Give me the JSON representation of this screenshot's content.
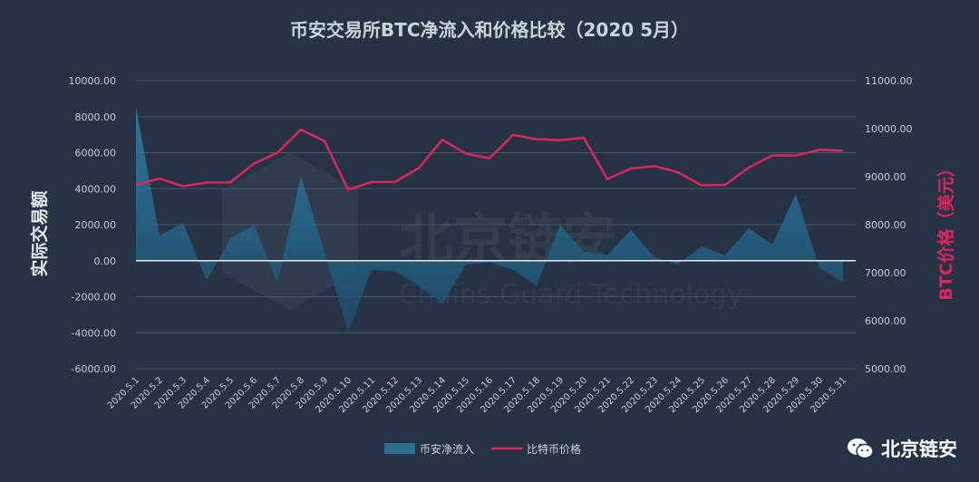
{
  "colors": {
    "background": "#253345",
    "net_inflow": "#2b6e92",
    "btc_price": "#e0245e",
    "grid": "#4a5666"
  },
  "watermark": {
    "text": "北京链安",
    "sub": "Chains Guard Technology"
  },
  "brand": {
    "name": "北京链安",
    "icon": "wechat-icon"
  },
  "chart_data": {
    "type": "area+line",
    "title": "币安交易所BTC净流入和价格比较（2020 5月）",
    "ylabel_left": "实际交易额",
    "ylabel_right": "BTC价格（美元）",
    "categories": [
      "2020.5.1",
      "2020.5.2",
      "2020.5.3",
      "2020.5.4",
      "2020.5.5",
      "2020.5.6",
      "2020.5.7",
      "2020.5.8",
      "2020.5.9",
      "2020.5.10",
      "2020.5.11",
      "2020.5.12",
      "2020.5.13",
      "2020.5.14",
      "2020.5.15",
      "2020.5.16",
      "2020.5.17",
      "2020.5.18",
      "2020.5.19",
      "2020.5.20",
      "2020.5.21",
      "2020.5.22",
      "2020.5.23",
      "2020.5.24",
      "2020.5.25",
      "2020.5.26",
      "2020.5.27",
      "2020.5.28",
      "2020.5.29",
      "2020.5.30",
      "2020.5.31"
    ],
    "ylim_left": [
      -6000,
      10000
    ],
    "yticks_left": [
      "10000.00",
      "8000.00",
      "6000.00",
      "4000.00",
      "2000.00",
      "0.00",
      "-2000.00",
      "-4000.00",
      "-6000.00"
    ],
    "ylim_right": [
      5000,
      11000
    ],
    "yticks_right": [
      "11000.00",
      "10000.00",
      "9000.00",
      "8000.00",
      "7000.00",
      "6000.00",
      "5000.00"
    ],
    "series": [
      {
        "name": "币安净流入",
        "axis": "left",
        "style": "area",
        "values": [
          8500,
          1400,
          2100,
          -1100,
          1200,
          2000,
          -1200,
          4700,
          500,
          -4000,
          -500,
          -600,
          -1400,
          -2400,
          -200,
          -100,
          -500,
          -1400,
          2000,
          500,
          300,
          1700,
          200,
          -200,
          800,
          300,
          1800,
          900,
          3700,
          -400,
          -1200
        ]
      },
      {
        "name": "比特币价格",
        "axis": "right",
        "style": "line",
        "values": [
          8830,
          8960,
          8800,
          8880,
          8880,
          9270,
          9500,
          9980,
          9740,
          8730,
          8890,
          8890,
          9180,
          9770,
          9480,
          9380,
          9870,
          9780,
          9760,
          9810,
          8950,
          9170,
          9220,
          9090,
          8820,
          8830,
          9190,
          9440,
          9440,
          9560,
          9540
        ]
      }
    ],
    "grid": true,
    "legend_position": "bottom"
  }
}
